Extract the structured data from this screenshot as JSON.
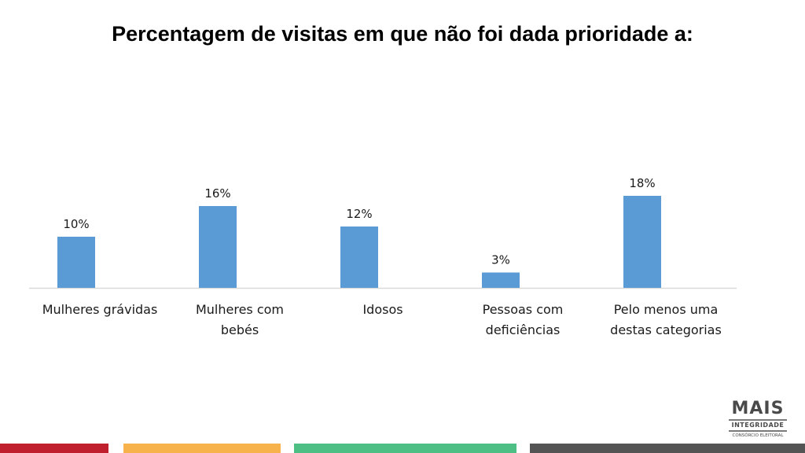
{
  "title": "Percentagem de visitas em que não foi dada prioridade a:",
  "chart_data": {
    "type": "bar",
    "title": "Percentagem de visitas em que não foi dada prioridade a:",
    "categories": [
      [
        "Mulheres grávidas"
      ],
      [
        "Mulheres com",
        "bebés"
      ],
      [
        "Idosos"
      ],
      [
        "Pessoas com",
        "deficiências"
      ],
      [
        "Pelo menos uma",
        "destas categorias"
      ]
    ],
    "values": [
      10,
      16,
      12,
      3,
      18
    ],
    "data_labels": [
      "10%",
      "16%",
      "12%",
      "3%",
      "18%"
    ],
    "unit": "%",
    "ylim": [
      0,
      30
    ],
    "xlabel": "",
    "ylabel": "",
    "grid": false,
    "legend": "none",
    "bar_color": "#5B9BD5",
    "axis_color": "#D9D9D9",
    "label_color": "#1a1a1a"
  },
  "logo": {
    "main": "MAIS",
    "sub": "INTEGRIDADE",
    "sub2": "CONSÓRCIO ELEITORAL"
  },
  "footer_colors": [
    "#C0202E",
    "#F7B24C",
    "#4DBF85",
    "#545454"
  ]
}
